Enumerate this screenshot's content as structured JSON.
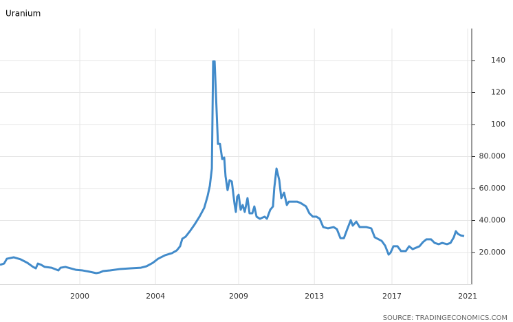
{
  "chart_data": {
    "type": "line",
    "title": "Uranium",
    "source": "SOURCE: TRADINGECONOMICS.COM",
    "x": [
      1995.68,
      1995.9,
      1996.05,
      1996.42,
      1996.8,
      1997.17,
      1997.47,
      1997.62,
      1997.73,
      1997.91,
      1998.1,
      1998.47,
      1998.84,
      1998.96,
      1999.22,
      1999.78,
      2000.15,
      2000.52,
      2000.89,
      2001.08,
      2001.26,
      2001.64,
      2002.2,
      2002.75,
      2003.31,
      2003.61,
      2003.95,
      2004.24,
      2004.62,
      2004.99,
      2005.25,
      2005.43,
      2005.55,
      2005.73,
      2005.96,
      2006.22,
      2006.48,
      2006.74,
      2006.92,
      2007.04,
      2007.15,
      2007.22,
      2007.3,
      2007.37,
      2007.48,
      2007.59,
      2007.71,
      2007.82,
      2007.89,
      2008.0,
      2008.11,
      2008.23,
      2008.38,
      2008.45,
      2008.52,
      2008.6,
      2008.71,
      2008.82,
      2008.93,
      2009.08,
      2009.19,
      2009.34,
      2009.45,
      2009.57,
      2009.75,
      2010.01,
      2010.13,
      2010.31,
      2010.46,
      2010.53,
      2010.65,
      2010.8,
      2010.91,
      2011.06,
      2011.21,
      2011.32,
      2011.51,
      2011.76,
      2011.95,
      2012.25,
      2012.43,
      2012.62,
      2012.81,
      2012.99,
      2013.18,
      2013.44,
      2013.74,
      2013.92,
      2014.11,
      2014.3,
      2014.48,
      2014.67,
      2014.78,
      2014.97,
      2015.15,
      2015.52,
      2015.78,
      2015.97,
      2016.34,
      2016.53,
      2016.72,
      2016.83,
      2016.98,
      2017.2,
      2017.39,
      2017.65,
      2017.83,
      2018.02,
      2018.39,
      2018.58,
      2018.76,
      2019.02,
      2019.21,
      2019.43,
      2019.62,
      2019.88,
      2020.07,
      2020.25,
      2020.36,
      2020.48,
      2020.62,
      2020.81
    ],
    "series": [
      {
        "name": "Uranium",
        "color": "#428bca",
        "values": [
          12.3,
          13.1,
          16.1,
          17.0,
          15.7,
          13.5,
          11.0,
          10.1,
          13.1,
          12.3,
          11.0,
          10.5,
          8.8,
          10.5,
          11.0,
          9.2,
          8.8,
          8.0,
          7.1,
          7.5,
          8.4,
          8.8,
          9.7,
          10.1,
          10.5,
          11.4,
          13.5,
          16.1,
          18.3,
          19.6,
          21.3,
          23.9,
          28.6,
          29.9,
          33.3,
          37.6,
          42.4,
          48.0,
          55.3,
          61.7,
          72.5,
          139.5,
          139.5,
          119.3,
          87.9,
          87.9,
          78.4,
          79.3,
          67.7,
          59.0,
          65.2,
          64.4,
          50.2,
          45.4,
          54.8,
          56.1,
          46.7,
          49.7,
          45.4,
          54.0,
          44.5,
          44.5,
          48.8,
          42.4,
          41.1,
          42.4,
          41.1,
          46.7,
          48.8,
          60.4,
          72.5,
          65.2,
          54.0,
          57.4,
          49.7,
          51.8,
          51.8,
          51.8,
          51.0,
          48.8,
          44.5,
          42.4,
          42.4,
          41.1,
          35.9,
          35.1,
          35.9,
          34.6,
          29.0,
          29.0,
          34.6,
          40.2,
          36.8,
          39.3,
          35.9,
          35.9,
          35.1,
          29.5,
          27.3,
          24.3,
          18.7,
          20.0,
          23.9,
          23.9,
          20.9,
          20.9,
          23.9,
          22.1,
          23.9,
          26.5,
          28.2,
          28.2,
          26.0,
          25.2,
          26.0,
          25.2,
          26.0,
          29.5,
          33.3,
          31.6,
          30.7,
          30.3
        ]
      }
    ],
    "xlim": [
      1995.68,
      2021.22
    ],
    "xticks": [
      {
        "value": 2000,
        "label": "2000"
      },
      {
        "value": 2004.1,
        "label": "2004"
      },
      {
        "value": 2008.6,
        "label": "2009"
      },
      {
        "value": 2012.7,
        "label": "2013"
      },
      {
        "value": 2016.9,
        "label": "2017"
      },
      {
        "value": 2021,
        "label": "2021"
      }
    ],
    "ylim": [
      0,
      160
    ],
    "yticks": [
      {
        "value": 20,
        "label": "20.000"
      },
      {
        "value": 40,
        "label": "40.000"
      },
      {
        "value": 60,
        "label": "60.000"
      },
      {
        "value": 80,
        "label": "80.000"
      },
      100,
      120,
      140
    ],
    "grid": true
  }
}
